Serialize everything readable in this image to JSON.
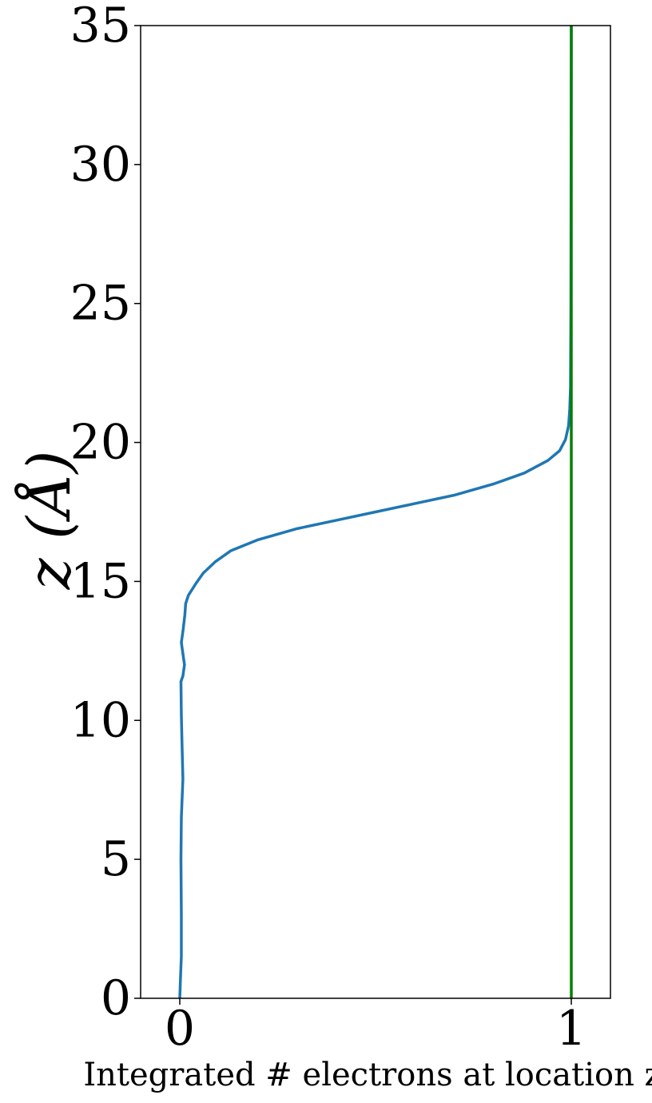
{
  "chart_data": {
    "type": "line",
    "title": "",
    "xlabel": "Integrated # electrons at location z",
    "ylabel": "z (Å)",
    "xlim": [
      -0.1,
      1.1
    ],
    "ylim": [
      0,
      35
    ],
    "x_ticks": [
      0,
      1
    ],
    "x_tick_labels": [
      "0",
      "1"
    ],
    "y_ticks": [
      0,
      5,
      10,
      15,
      20,
      25,
      30,
      35
    ],
    "y_tick_labels": [
      "0",
      "5",
      "10",
      "15",
      "20",
      "25",
      "30",
      "35"
    ],
    "grid": false,
    "legend": "none",
    "series": [
      {
        "color": "#1f77b4",
        "points": [
          [
            0.0,
            0.0
          ],
          [
            0.002,
            0.8
          ],
          [
            0.004,
            1.5
          ],
          [
            0.004,
            3.0
          ],
          [
            0.003,
            5.0
          ],
          [
            0.004,
            6.5
          ],
          [
            0.008,
            7.9
          ],
          [
            0.006,
            9.0
          ],
          [
            0.004,
            10.2
          ],
          [
            0.003,
            11.4
          ],
          [
            0.008,
            11.6
          ],
          [
            0.012,
            12.0
          ],
          [
            0.007,
            12.5
          ],
          [
            0.004,
            12.8
          ],
          [
            0.008,
            13.2
          ],
          [
            0.013,
            13.8
          ],
          [
            0.015,
            14.2
          ],
          [
            0.022,
            14.5
          ],
          [
            0.04,
            14.9
          ],
          [
            0.06,
            15.3
          ],
          [
            0.09,
            15.7
          ],
          [
            0.13,
            16.1
          ],
          [
            0.2,
            16.5
          ],
          [
            0.3,
            16.9
          ],
          [
            0.4,
            17.2
          ],
          [
            0.5,
            17.5
          ],
          [
            0.6,
            17.8
          ],
          [
            0.7,
            18.1
          ],
          [
            0.8,
            18.5
          ],
          [
            0.88,
            18.9
          ],
          [
            0.94,
            19.35
          ],
          [
            0.97,
            19.7
          ],
          [
            0.985,
            20.1
          ],
          [
            0.993,
            20.6
          ],
          [
            0.996,
            21.2
          ],
          [
            0.998,
            22.0
          ],
          [
            0.999,
            25.0
          ],
          [
            0.9995,
            30.0
          ],
          [
            1.0,
            35.0
          ]
        ]
      },
      {
        "color": "#008000",
        "points": [
          [
            1.0,
            0.0
          ],
          [
            1.0,
            35.0
          ]
        ]
      }
    ]
  }
}
